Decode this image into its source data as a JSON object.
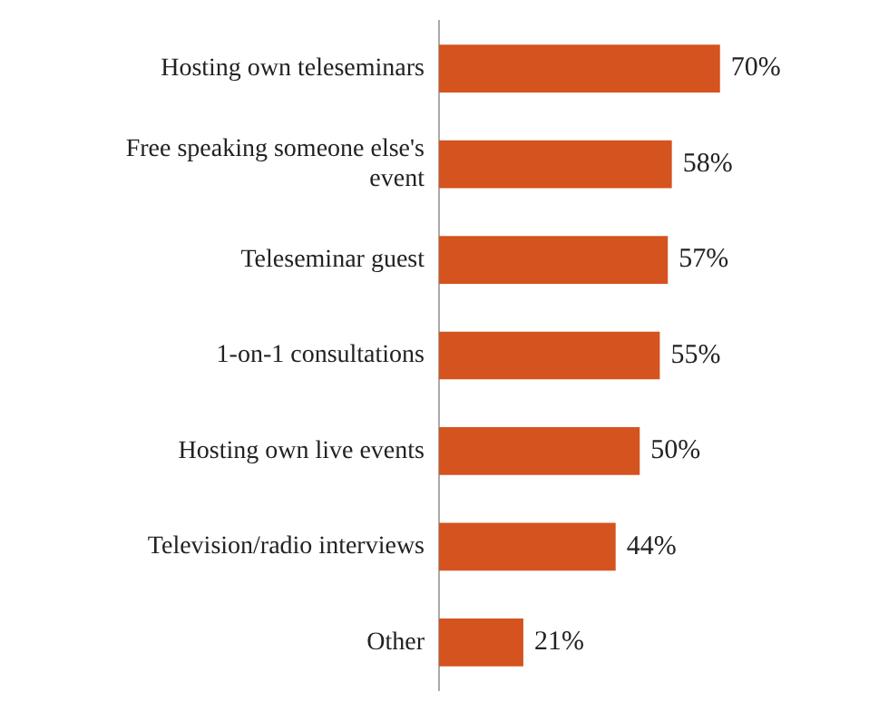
{
  "chart_data": {
    "type": "bar",
    "orientation": "horizontal",
    "categories": [
      "Hosting own teleseminars",
      "Free speaking someone else's event",
      "Teleseminar guest",
      "1-on-1 consultations",
      "Hosting own live events",
      "Television/radio interviews",
      "Other"
    ],
    "values": [
      70,
      58,
      57,
      55,
      50,
      44,
      21
    ],
    "value_labels": [
      "70%",
      "58%",
      "57%",
      "55%",
      "50%",
      "44%",
      "21%"
    ],
    "color": "#d4531f",
    "tick_labels": "y",
    "legend": false
  }
}
